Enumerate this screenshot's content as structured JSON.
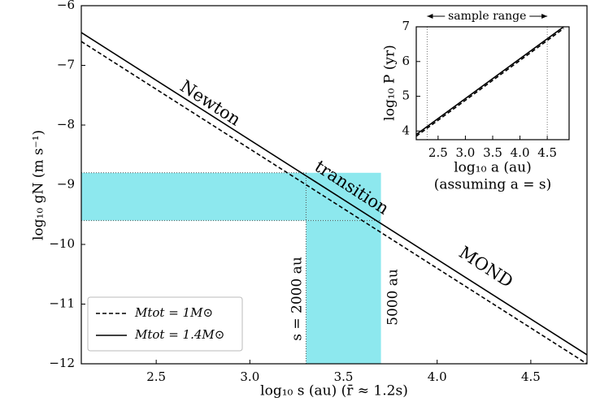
{
  "chart_data": [
    {
      "type": "line",
      "x_label": "log₁₀ s (au)  (r̄ ≈ 1.2s)",
      "y_label": "log₁₀ gN (m s⁻¹)",
      "x": [
        2.1,
        4.8
      ],
      "series": [
        {
          "name": "Mtot = 1M⊙",
          "color": "#000000",
          "dash": true,
          "values": [
            -6.6,
            -12.0
          ]
        },
        {
          "name": "Mtot = 1.4M⊙",
          "color": "#000000",
          "dash": false,
          "values": [
            -6.45,
            -11.85
          ]
        }
      ],
      "xlim": [
        2.1,
        4.8
      ],
      "ylim": [
        -12,
        -6
      ],
      "xticks": [
        2.5,
        {
          "value": 3.0,
          "label": "3.0"
        },
        3.5,
        {
          "value": 4.0,
          "label": "4.0"
        },
        4.5
      ],
      "yticks": [
        {
          "value": -12,
          "label": "−12"
        },
        {
          "value": -11,
          "label": "−11"
        },
        {
          "value": -10,
          "label": "−10"
        },
        {
          "value": -9,
          "label": "−9"
        },
        {
          "value": -8,
          "label": "−8"
        },
        {
          "value": -7,
          "label": "−7"
        },
        {
          "value": -6,
          "label": "−6"
        }
      ],
      "shade_color": "#8de8ee",
      "s_range": [
        3.3,
        3.7
      ],
      "g_range": [
        -9.6,
        -8.8
      ],
      "annotations": [
        "Newton",
        "transition",
        "MOND",
        "s = 2000 au",
        "5000 au"
      ],
      "legend": "lower left"
    },
    {
      "type": "line",
      "title": "sample range",
      "x_label": "log₁₀ a (au)",
      "x_label2": "(assuming a = s)",
      "y_label": "log₁₀ P (yr)",
      "x": [
        2.1,
        4.8
      ],
      "series": [
        {
          "color": "#000000",
          "dash": true,
          "values": [
            3.85,
            6.95
          ]
        },
        {
          "color": "#000000",
          "dash": false,
          "values": [
            3.9,
            7.0
          ]
        }
      ],
      "xlim": [
        2.1,
        4.9
      ],
      "ylim": [
        3.75,
        7.0
      ],
      "xticks": [
        2.5,
        {
          "value": 3.0,
          "label": "3.0"
        },
        3.5,
        {
          "value": 4.0,
          "label": "4.0"
        },
        4.5
      ],
      "yticks": [
        4,
        5,
        6,
        7
      ],
      "sample_range": [
        2.3,
        4.5
      ]
    }
  ]
}
